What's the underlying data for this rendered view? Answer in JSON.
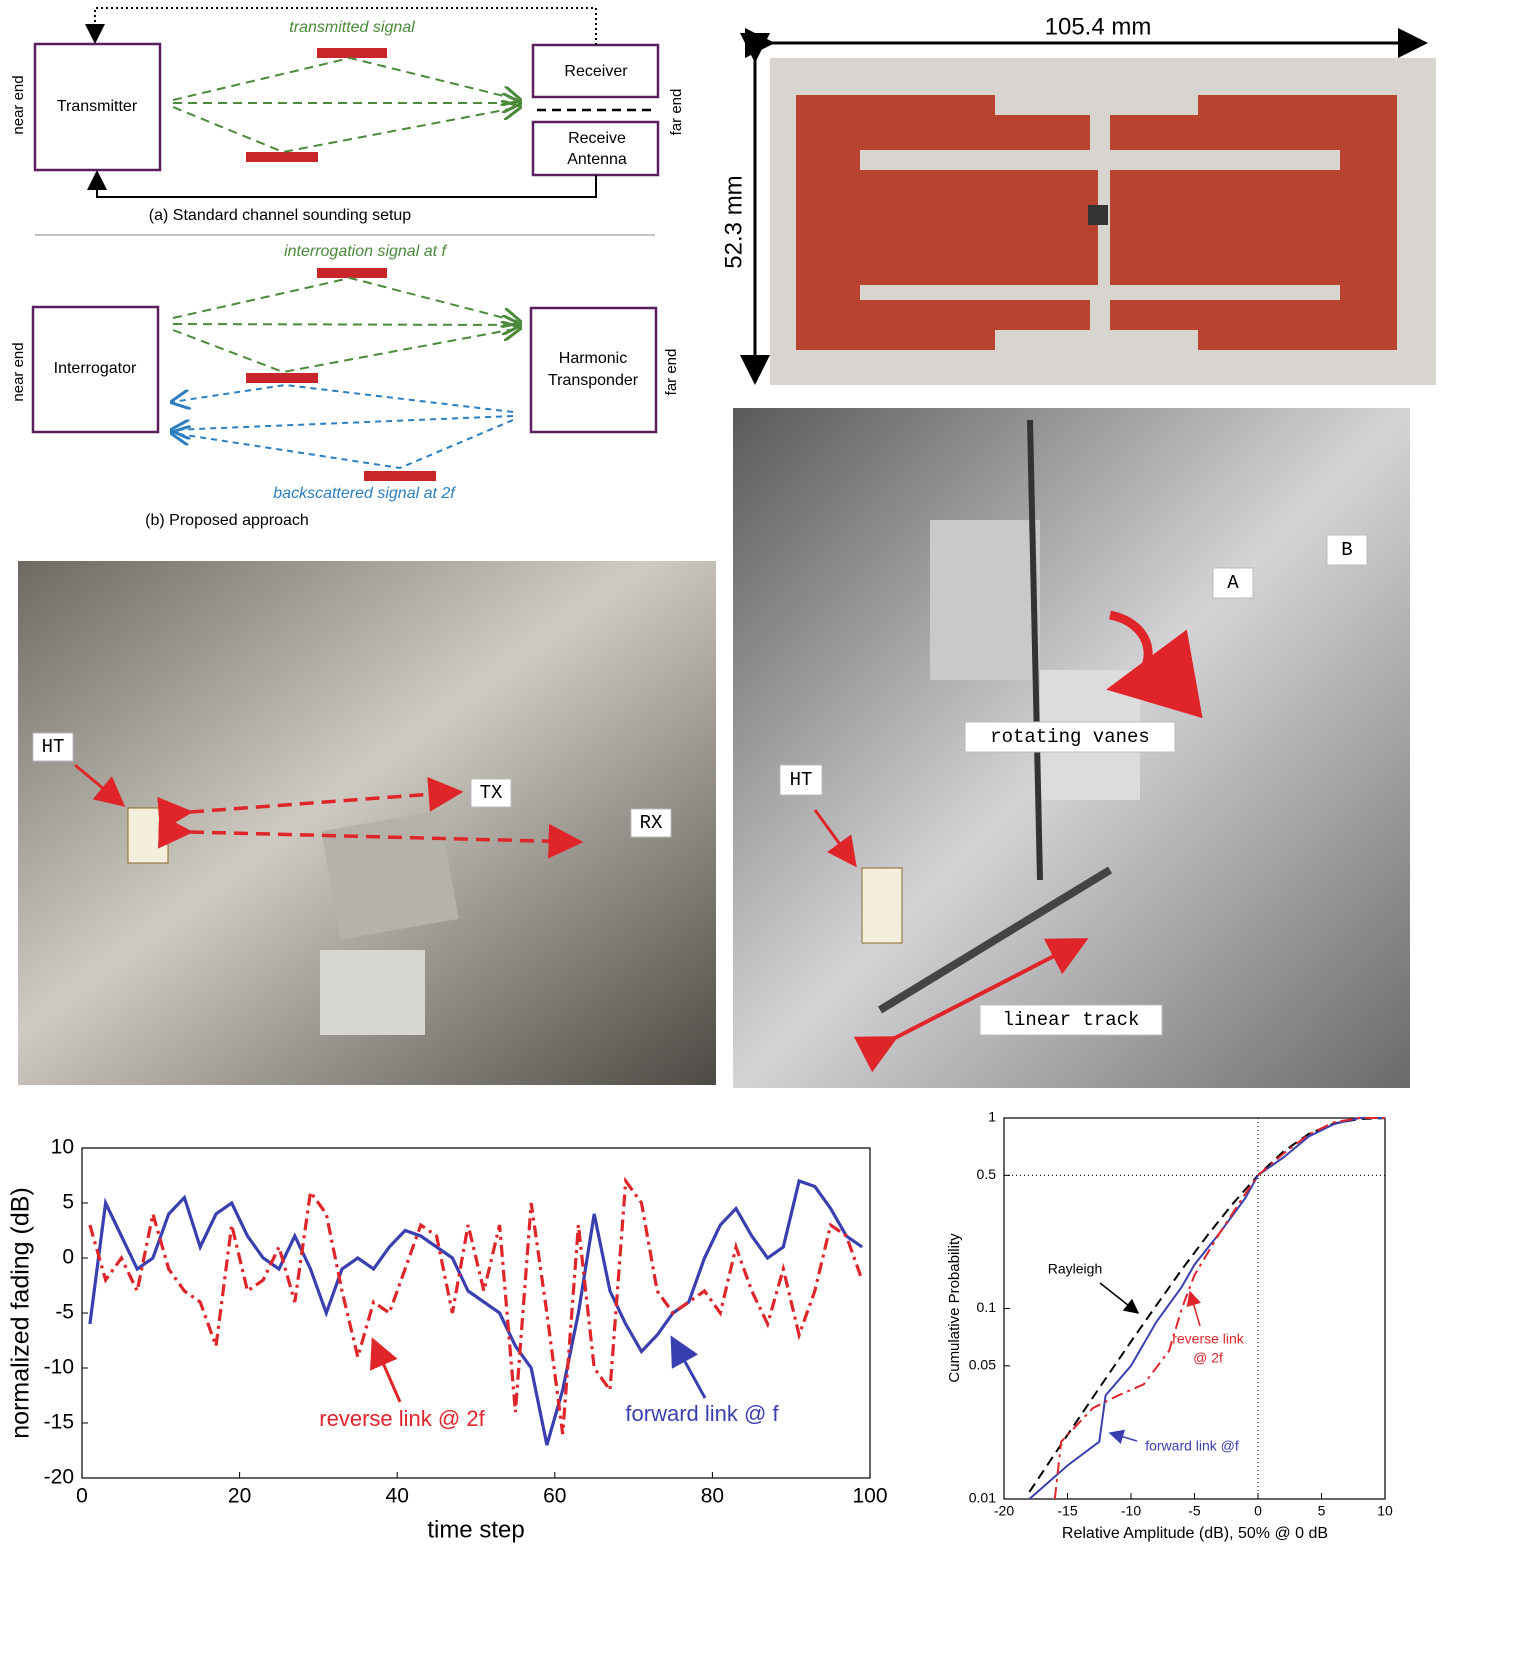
{
  "diagram_a": {
    "near_end": "near end",
    "far_end": "far end",
    "transmitter": "Transmitter",
    "receiver": "Receiver",
    "receive_antenna": [
      "Receive",
      "Antenna"
    ],
    "signal": "transmitted signal",
    "caption": "(a) Standard channel sounding setup"
  },
  "diagram_b": {
    "near_end": "near end",
    "far_end": "far end",
    "interrogator": "Interrogator",
    "transponder": [
      "Harmonic",
      "Transponder"
    ],
    "forward_signal": "interrogation signal at  f",
    "backscatter_signal": "backscattered signal at  2f",
    "caption": "(b) Proposed approach"
  },
  "board": {
    "width_label": "105.4 mm",
    "height_label": "52.3 mm"
  },
  "photo_left": {
    "labels": [
      "HT",
      "TX",
      "RX"
    ]
  },
  "photo_right": {
    "labels": [
      "A",
      "B",
      "rotating vanes",
      "HT",
      "linear track"
    ]
  },
  "chart_data": [
    {
      "type": "line",
      "x_label": "time step",
      "y_label": "normalized fading (dB)",
      "x": [
        1,
        3,
        5,
        7,
        9,
        11,
        13,
        15,
        17,
        19,
        21,
        23,
        25,
        27,
        29,
        31,
        33,
        35,
        37,
        39,
        41,
        43,
        45,
        47,
        49,
        51,
        53,
        55,
        57,
        59,
        61,
        63,
        65,
        67,
        69,
        71,
        73,
        75,
        77,
        79,
        81,
        83,
        85,
        87,
        89,
        91,
        93,
        95,
        97,
        99
      ],
      "series": [
        {
          "name": "forward link @ f",
          "color": "#3a3fb0",
          "style": "solid",
          "values": [
            -6,
            5,
            2,
            -1,
            0,
            4,
            5.5,
            1,
            4,
            5,
            2,
            0,
            -1,
            2,
            -1,
            -5,
            -1,
            0,
            -1,
            1,
            2.5,
            2,
            1,
            0,
            -3,
            -4,
            -5,
            -8,
            -10,
            -17,
            -12,
            -5,
            4,
            -3,
            -6,
            -8.5,
            -7,
            -5,
            -4,
            0,
            3,
            4.5,
            2,
            0,
            1,
            7,
            6.5,
            4.5,
            2,
            1
          ]
        },
        {
          "name": "reverse link @ 2f",
          "color": "#e0252a",
          "style": "dashdot",
          "values": [
            3,
            -2,
            0,
            -3,
            4,
            -1,
            -3,
            -4,
            -8,
            3,
            -3,
            -2,
            1,
            -4,
            6,
            4,
            -3,
            -9,
            -4,
            -5,
            -1,
            3,
            2,
            -5,
            3,
            -3,
            3,
            -14,
            5,
            -5,
            -16,
            3,
            -10,
            -12,
            7,
            5,
            -3,
            -5,
            -4,
            -3,
            -5,
            1,
            -3,
            -6,
            -1,
            -7,
            -3,
            3,
            2,
            -2
          ]
        }
      ],
      "annotations": [
        "reverse link @ 2f",
        "forward link @ f"
      ],
      "xlim": [
        0,
        100
      ],
      "xticks": [
        0,
        20,
        40,
        60,
        80,
        100
      ],
      "ylim": [
        -20,
        10
      ],
      "yticks": [
        -20,
        -15,
        -10,
        -5,
        0,
        5,
        10
      ]
    },
    {
      "type": "line",
      "x_label": "Relative Amplitude (dB), 50% @ 0 dB",
      "y_label": "Cumulative Probability",
      "ylog": true,
      "series": [
        {
          "name": "Rayleigh",
          "color": "#000000",
          "style": "dashed",
          "x": [
            -18,
            -15,
            -12,
            -10,
            -8,
            -6,
            -4,
            -2,
            0,
            2,
            4,
            6,
            8,
            10
          ],
          "values": [
            0.0109,
            0.0217,
            0.0428,
            0.067,
            0.104,
            0.16,
            0.241,
            0.354,
            0.5,
            0.667,
            0.825,
            0.937,
            0.988,
            0.999
          ]
        },
        {
          "name": "forward link @f",
          "color": "#3a3fb0",
          "style": "solid",
          "x": [
            -18,
            -15,
            -12.5,
            -12,
            -10,
            -8,
            -6,
            -5,
            -3,
            -1,
            0,
            2,
            4,
            6,
            8,
            10
          ],
          "values": [
            0.01,
            0.015,
            0.02,
            0.035,
            0.05,
            0.085,
            0.13,
            0.17,
            0.25,
            0.38,
            0.5,
            0.62,
            0.8,
            0.93,
            1,
            1
          ]
        },
        {
          "name": "reverse link @ 2f",
          "color": "#e0252a",
          "style": "dashdot",
          "x": [
            -16,
            -15.5,
            -13,
            -11,
            -9,
            -7,
            -6,
            -5,
            -3,
            -1,
            0,
            2,
            4,
            6,
            8,
            10
          ],
          "values": [
            0.01,
            0.02,
            0.03,
            0.035,
            0.04,
            0.06,
            0.1,
            0.15,
            0.25,
            0.4,
            0.5,
            0.65,
            0.82,
            0.95,
            1,
            1
          ]
        }
      ],
      "annotations": [
        "Rayleigh",
        "reverse link",
        "@ 2f",
        "forward link @f"
      ],
      "ref_lines": {
        "x": 0,
        "y": 0.5
      },
      "xlim": [
        -20,
        10
      ],
      "xticks": [
        -20,
        -15,
        -10,
        -5,
        0,
        5,
        10
      ],
      "ylim": [
        0.01,
        1
      ],
      "yticks": [
        0.01,
        0.05,
        0.1,
        0.5,
        1
      ]
    }
  ]
}
